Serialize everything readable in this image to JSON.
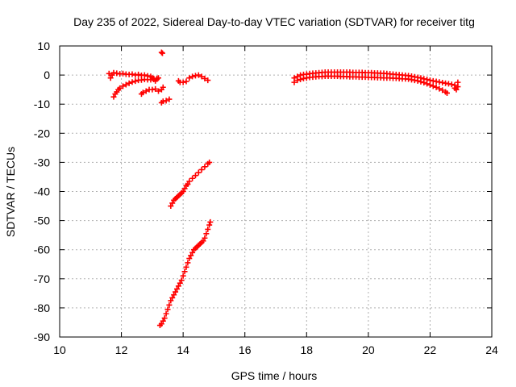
{
  "chart_data": {
    "type": "scatter",
    "title": "Day 235 of 2022, Sidereal Day-to-day VTEC variation (SDTVAR) for receiver titg",
    "xlabel": "GPS time / hours",
    "ylabel": "SDTVAR / TECUs",
    "xlim": [
      10,
      24
    ],
    "ylim": [
      -90,
      10
    ],
    "xticks": [
      10,
      12,
      14,
      16,
      18,
      20,
      22,
      24
    ],
    "yticks": [
      10,
      0,
      -10,
      -20,
      -30,
      -40,
      -50,
      -60,
      -70,
      -80,
      -90
    ],
    "grid": true,
    "marker": "+",
    "color": "#ff0000",
    "series": [
      {
        "points": [
          [
            11.6,
            0.5
          ],
          [
            11.65,
            -1.0
          ],
          [
            11.7,
            0.0
          ],
          [
            11.75,
            0.8
          ],
          [
            11.85,
            0.6
          ],
          [
            11.95,
            0.4
          ],
          [
            12.05,
            0.5
          ],
          [
            12.15,
            0.3
          ],
          [
            12.25,
            0.2
          ],
          [
            12.35,
            0.3
          ],
          [
            12.45,
            0.0
          ],
          [
            12.55,
            0.2
          ],
          [
            12.65,
            -0.1
          ],
          [
            12.75,
            0.0
          ],
          [
            12.85,
            -0.3
          ],
          [
            12.95,
            -0.5
          ],
          [
            13.0,
            -1.0
          ],
          [
            13.05,
            -1.5
          ],
          [
            13.1,
            -2.0
          ],
          [
            13.15,
            -1.2
          ],
          [
            13.2,
            -1.0
          ],
          [
            11.75,
            -7.5
          ],
          [
            11.8,
            -6.5
          ],
          [
            11.85,
            -5.8
          ],
          [
            11.9,
            -5.0
          ],
          [
            11.95,
            -4.5
          ],
          [
            12.05,
            -3.8
          ],
          [
            12.15,
            -3.3
          ],
          [
            12.25,
            -2.8
          ],
          [
            12.35,
            -2.4
          ],
          [
            12.45,
            -2.1
          ],
          [
            12.55,
            -1.8
          ],
          [
            12.65,
            -1.7
          ],
          [
            12.75,
            -1.5
          ],
          [
            12.85,
            -1.6
          ],
          [
            12.95,
            -1.6
          ],
          [
            13.05,
            -1.2
          ],
          [
            13.15,
            -1.4
          ],
          [
            12.65,
            -6.5
          ],
          [
            12.7,
            -6.0
          ],
          [
            12.8,
            -5.5
          ],
          [
            12.9,
            -5.0
          ],
          [
            13.0,
            -5.0
          ],
          [
            13.1,
            -4.8
          ],
          [
            13.2,
            -5.5
          ],
          [
            13.3,
            -5.0
          ],
          [
            13.35,
            -4.2
          ],
          [
            13.3,
            7.8
          ],
          [
            13.33,
            7.5
          ],
          [
            13.3,
            -9.5
          ],
          [
            13.35,
            -9.0
          ],
          [
            13.45,
            -8.8
          ],
          [
            13.55,
            -8.3
          ],
          [
            13.85,
            -2.0
          ],
          [
            13.9,
            -2.5
          ],
          [
            14.0,
            -2.5
          ],
          [
            14.1,
            -2.2
          ],
          [
            14.2,
            -1.0
          ],
          [
            14.3,
            -0.5
          ],
          [
            14.4,
            -0.2
          ],
          [
            14.5,
            0.0
          ],
          [
            14.6,
            -0.5
          ],
          [
            14.7,
            -1.2
          ],
          [
            14.8,
            -1.8
          ],
          [
            13.6,
            -45
          ],
          [
            13.65,
            -44
          ],
          [
            13.7,
            -43
          ],
          [
            13.75,
            -42.5
          ],
          [
            13.8,
            -42
          ],
          [
            13.85,
            -41.5
          ],
          [
            13.9,
            -41
          ],
          [
            13.95,
            -40.5
          ],
          [
            14.0,
            -40
          ],
          [
            14.05,
            -39
          ],
          [
            14.1,
            -38
          ],
          [
            14.15,
            -37.5
          ],
          [
            14.2,
            -36.5
          ],
          [
            14.3,
            -35.5
          ],
          [
            14.4,
            -34.5
          ],
          [
            14.5,
            -33.5
          ],
          [
            14.6,
            -32.5
          ],
          [
            14.7,
            -31.5
          ],
          [
            14.8,
            -30.5
          ],
          [
            14.85,
            -30.0
          ],
          [
            13.25,
            -86
          ],
          [
            13.3,
            -85.5
          ],
          [
            13.35,
            -84.5
          ],
          [
            13.4,
            -83.5
          ],
          [
            13.45,
            -82
          ],
          [
            13.5,
            -80.5
          ],
          [
            13.55,
            -79
          ],
          [
            13.6,
            -77.5
          ],
          [
            13.65,
            -76.5
          ],
          [
            13.7,
            -75.5
          ],
          [
            13.75,
            -74.5
          ],
          [
            13.8,
            -73.5
          ],
          [
            13.85,
            -72.5
          ],
          [
            13.9,
            -71.5
          ],
          [
            13.95,
            -70.5
          ],
          [
            14.0,
            -69
          ],
          [
            14.05,
            -67.5
          ],
          [
            14.1,
            -66
          ],
          [
            14.15,
            -64.5
          ],
          [
            14.2,
            -63
          ],
          [
            14.25,
            -62
          ],
          [
            14.3,
            -61
          ],
          [
            14.35,
            -60
          ],
          [
            14.4,
            -59.5
          ],
          [
            14.45,
            -59
          ],
          [
            14.5,
            -58.5
          ],
          [
            14.55,
            -58
          ],
          [
            14.6,
            -57.5
          ],
          [
            14.65,
            -57
          ],
          [
            14.7,
            -56
          ],
          [
            14.75,
            -54.5
          ],
          [
            14.8,
            -53
          ],
          [
            14.85,
            -51.5
          ],
          [
            14.88,
            -50.5
          ],
          [
            17.6,
            -2.5
          ],
          [
            17.6,
            -1.0
          ],
          [
            17.7,
            -1.8
          ],
          [
            17.7,
            -0.5
          ],
          [
            17.8,
            -1.5
          ],
          [
            17.8,
            0.0
          ],
          [
            17.9,
            -1.2
          ],
          [
            17.9,
            0.2
          ],
          [
            18.0,
            -1.0
          ],
          [
            18.0,
            0.3
          ],
          [
            18.1,
            -0.8
          ],
          [
            18.1,
            0.5
          ],
          [
            18.2,
            -0.7
          ],
          [
            18.2,
            0.6
          ],
          [
            18.3,
            -0.6
          ],
          [
            18.3,
            0.7
          ],
          [
            18.4,
            -0.5
          ],
          [
            18.4,
            0.8
          ],
          [
            18.5,
            -0.5
          ],
          [
            18.5,
            0.9
          ],
          [
            18.6,
            -0.4
          ],
          [
            18.6,
            1.0
          ],
          [
            18.7,
            -0.4
          ],
          [
            18.7,
            1.0
          ],
          [
            18.8,
            -0.4
          ],
          [
            18.8,
            1.0
          ],
          [
            18.9,
            -0.4
          ],
          [
            18.9,
            1.0
          ],
          [
            19.0,
            -0.4
          ],
          [
            19.0,
            1.0
          ],
          [
            19.1,
            -0.5
          ],
          [
            19.1,
            1.0
          ],
          [
            19.2,
            -0.5
          ],
          [
            19.2,
            1.0
          ],
          [
            19.3,
            -0.5
          ],
          [
            19.3,
            1.0
          ],
          [
            19.4,
            -0.6
          ],
          [
            19.4,
            1.0
          ],
          [
            19.5,
            -0.6
          ],
          [
            19.5,
            0.9
          ],
          [
            19.6,
            -0.6
          ],
          [
            19.6,
            0.9
          ],
          [
            19.7,
            -0.7
          ],
          [
            19.7,
            0.9
          ],
          [
            19.8,
            -0.7
          ],
          [
            19.8,
            0.9
          ],
          [
            19.9,
            -0.7
          ],
          [
            19.9,
            0.8
          ],
          [
            20.0,
            -0.8
          ],
          [
            20.0,
            0.8
          ],
          [
            20.1,
            -0.8
          ],
          [
            20.1,
            0.8
          ],
          [
            20.2,
            -0.8
          ],
          [
            20.2,
            0.7
          ],
          [
            20.3,
            -0.9
          ],
          [
            20.3,
            0.7
          ],
          [
            20.4,
            -0.9
          ],
          [
            20.4,
            0.6
          ],
          [
            20.5,
            -1.0
          ],
          [
            20.5,
            0.6
          ],
          [
            20.6,
            -1.0
          ],
          [
            20.6,
            0.5
          ],
          [
            20.7,
            -1.0
          ],
          [
            20.7,
            0.4
          ],
          [
            20.8,
            -1.1
          ],
          [
            20.8,
            0.3
          ],
          [
            20.9,
            -1.1
          ],
          [
            20.9,
            0.2
          ],
          [
            21.0,
            -1.2
          ],
          [
            21.0,
            0.1
          ],
          [
            21.1,
            -1.3
          ],
          [
            21.1,
            0.0
          ],
          [
            21.2,
            -1.3
          ],
          [
            21.2,
            -0.1
          ],
          [
            21.3,
            -1.4
          ],
          [
            21.3,
            -0.2
          ],
          [
            21.4,
            -1.6
          ],
          [
            21.4,
            -0.4
          ],
          [
            21.5,
            -1.8
          ],
          [
            21.5,
            -0.6
          ],
          [
            21.6,
            -2.0
          ],
          [
            21.6,
            -0.8
          ],
          [
            21.7,
            -2.3
          ],
          [
            21.7,
            -1.0
          ],
          [
            21.8,
            -2.6
          ],
          [
            21.8,
            -1.3
          ],
          [
            21.9,
            -3.0
          ],
          [
            21.9,
            -1.5
          ],
          [
            22.0,
            -3.4
          ],
          [
            22.0,
            -1.8
          ],
          [
            22.1,
            -3.8
          ],
          [
            22.1,
            -2.0
          ],
          [
            22.2,
            -4.2
          ],
          [
            22.2,
            -2.2
          ],
          [
            22.3,
            -4.7
          ],
          [
            22.3,
            -2.4
          ],
          [
            22.4,
            -5.2
          ],
          [
            22.4,
            -2.6
          ],
          [
            22.5,
            -5.8
          ],
          [
            22.5,
            -2.8
          ],
          [
            22.55,
            -6.2
          ],
          [
            22.6,
            -3.0
          ],
          [
            22.7,
            -3.2
          ],
          [
            22.8,
            -3.5
          ],
          [
            22.8,
            -4.5
          ],
          [
            22.85,
            -5.0
          ],
          [
            22.9,
            -4.0
          ],
          [
            22.9,
            -2.5
          ]
        ]
      }
    ]
  }
}
